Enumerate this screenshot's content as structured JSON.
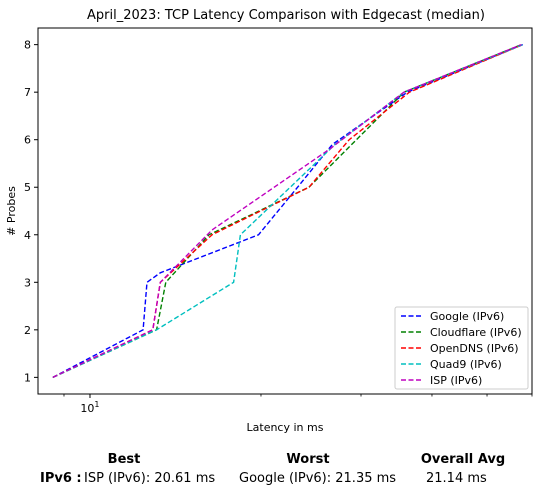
{
  "chart_data": {
    "type": "line",
    "title": "April_2023: TCP Latency Comparison with Edgecast (median)",
    "xlabel": "Latency in ms",
    "ylabel": "# Probes",
    "xscale": "log",
    "xlim": [
      8.1,
      60
    ],
    "ylim": [
      0.65,
      8.35
    ],
    "xticks": [
      {
        "value": 10,
        "label": "10^1"
      }
    ],
    "yticks": [
      1,
      2,
      3,
      4,
      5,
      6,
      7,
      8
    ],
    "grid": false,
    "legend_position": "lower-right",
    "series": [
      {
        "name": "Google (IPv6)",
        "color": "#0000ff",
        "x": [
          8.6,
          12.4,
          12.6,
          13.3,
          19.8,
          23.2,
          26.7,
          36.2,
          57.8
        ],
        "y": [
          1,
          2,
          3,
          3.2,
          4,
          5,
          5.9,
          7,
          8
        ]
      },
      {
        "name": "Cloudflare (IPv6)",
        "color": "#008000",
        "x": [
          8.6,
          13.1,
          13.6,
          16.2,
          24.3,
          35.7,
          57.5
        ],
        "y": [
          1,
          2,
          3,
          4,
          5,
          7,
          8
        ]
      },
      {
        "name": "OpenDNS (IPv6)",
        "color": "#ff0000",
        "x": [
          8.6,
          12.9,
          13.3,
          16.4,
          24.3,
          28.6,
          36.5,
          57.8
        ],
        "y": [
          1,
          2,
          3,
          4,
          5,
          6,
          7,
          8
        ]
      },
      {
        "name": "Quad9 (IPv6)",
        "color": "#00bfbf",
        "x": [
          8.6,
          13.1,
          17.9,
          18.4,
          27.0,
          35.7,
          57.8
        ],
        "y": [
          1,
          2,
          3,
          4,
          5.9,
          7,
          8
        ]
      },
      {
        "name": "ISP (IPv6)",
        "color": "#bf00bf",
        "x": [
          8.6,
          12.9,
          13.3,
          16.4,
          26.4,
          35.7,
          57.5
        ],
        "y": [
          1,
          2,
          3,
          4.1,
          5.8,
          7,
          8
        ]
      }
    ]
  },
  "summary": {
    "best_header": "Best",
    "worst_header": "Worst",
    "avg_header": "Overall Avg",
    "row_label": "IPv6 :",
    "best_value": "ISP (IPv6): 20.61 ms",
    "worst_value": "Google (IPv6): 21.35 ms",
    "avg_value": "21.14 ms"
  }
}
